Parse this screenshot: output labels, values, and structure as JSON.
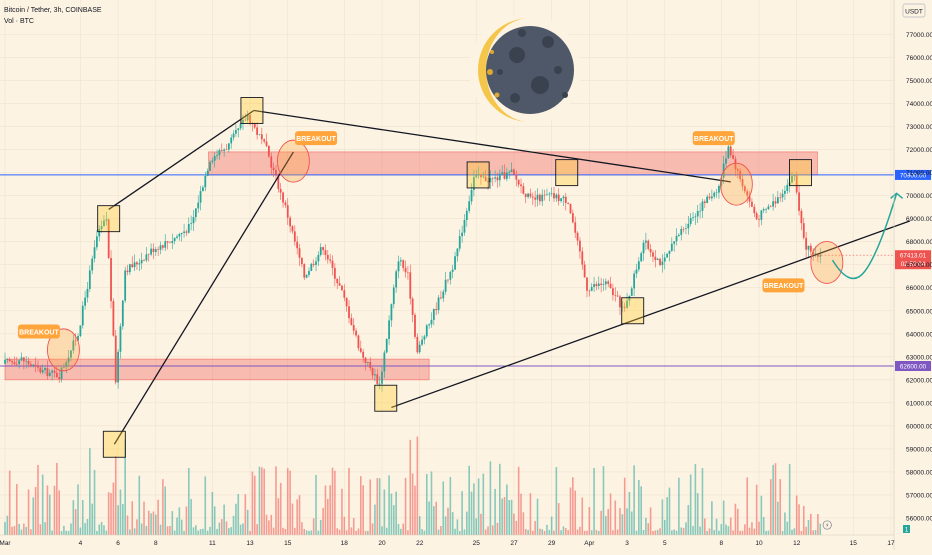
{
  "header": {
    "title": "Bitcoin / Tether, 3h, COINBASE",
    "volume_label": "Vol · BTC",
    "currency_badge": "USDT"
  },
  "chart_data": {
    "type": "candlestick",
    "symbol": "Bitcoin / Tether",
    "interval": "3h",
    "exchange": "COINBASE",
    "ylim": [
      55500,
      77900
    ],
    "y_ticks": [
      56000,
      57000,
      58000,
      59000,
      60000,
      61000,
      62000,
      63000,
      64000,
      65000,
      66000,
      67000,
      68000,
      69000,
      70000,
      71000,
      72000,
      73000,
      74000,
      75000,
      76000,
      77000
    ],
    "x_ticks": [
      {
        "label": "Mar",
        "day": 0
      },
      {
        "label": "4",
        "day": 4
      },
      {
        "label": "6",
        "day": 6
      },
      {
        "label": "8",
        "day": 8
      },
      {
        "label": "11",
        "day": 11
      },
      {
        "label": "13",
        "day": 13
      },
      {
        "label": "15",
        "day": 15
      },
      {
        "label": "18",
        "day": 18
      },
      {
        "label": "20",
        "day": 20
      },
      {
        "label": "22",
        "day": 22
      },
      {
        "label": "25",
        "day": 25
      },
      {
        "label": "27",
        "day": 27
      },
      {
        "label": "29",
        "day": 29
      },
      {
        "label": "Apr",
        "day": 31
      },
      {
        "label": "3",
        "day": 33
      },
      {
        "label": "5",
        "day": 35
      },
      {
        "label": "8",
        "day": 38
      },
      {
        "label": "10",
        "day": 40
      },
      {
        "label": "12",
        "day": 42
      },
      {
        "label": "15",
        "day": 45
      },
      {
        "label": "17",
        "day": 47
      }
    ],
    "price_path": [
      [
        0,
        62700
      ],
      [
        1,
        62900
      ],
      [
        2,
        62400
      ],
      [
        3,
        62200
      ],
      [
        4,
        64000
      ],
      [
        5,
        68200
      ],
      [
        5.5,
        69000
      ],
      [
        6,
        62000
      ],
      [
        6.5,
        66800
      ],
      [
        7,
        67000
      ],
      [
        8,
        67700
      ],
      [
        9,
        68100
      ],
      [
        10,
        68700
      ],
      [
        11,
        71600
      ],
      [
        12,
        72200
      ],
      [
        13,
        73500
      ],
      [
        14,
        72000
      ],
      [
        15,
        69500
      ],
      [
        16,
        66500
      ],
      [
        17,
        67800
      ],
      [
        18,
        65800
      ],
      [
        19,
        63200
      ],
      [
        20,
        61800
      ],
      [
        21,
        67300
      ],
      [
        21.5,
        66500
      ],
      [
        22,
        63200
      ],
      [
        23,
        65200
      ],
      [
        24,
        67200
      ],
      [
        25,
        70800
      ],
      [
        26,
        70700
      ],
      [
        27,
        71000
      ],
      [
        28,
        69800
      ],
      [
        29,
        70000
      ],
      [
        30,
        69800
      ],
      [
        31,
        66000
      ],
      [
        32,
        66200
      ],
      [
        33,
        65000
      ],
      [
        34,
        68000
      ],
      [
        35,
        67000
      ],
      [
        36,
        68500
      ],
      [
        37,
        69500
      ],
      [
        38,
        70400
      ],
      [
        38.5,
        72200
      ],
      [
        39,
        71000
      ],
      [
        40,
        69000
      ],
      [
        41,
        69800
      ],
      [
        42,
        70900
      ],
      [
        42.5,
        68000
      ],
      [
        43,
        67300
      ],
      [
        43.3,
        67413
      ]
    ],
    "horizontal_levels": [
      {
        "price": 70900,
        "label": "70900.00",
        "color": "#2962ff"
      },
      {
        "price": 62600,
        "label": "62600.00",
        "color": "#7e57c2"
      }
    ],
    "current_price": {
      "label": "67413.01",
      "countdown": "02:52:04"
    },
    "zones": [
      {
        "from_day": 0,
        "to_day": 22.5,
        "low": 62000,
        "high": 62900
      },
      {
        "from_day": 10.8,
        "to_day": 43.1,
        "low": 70900,
        "high": 71900
      }
    ],
    "trendlines": [
      {
        "from": [
          5.5,
          69400
        ],
        "to": [
          13.2,
          73700
        ]
      },
      {
        "from": [
          5.8,
          59200
        ],
        "to": [
          15.3,
          71900
        ]
      },
      {
        "from": [
          13.2,
          73700
        ],
        "to": [
          38.5,
          70600
        ]
      },
      {
        "from": [
          20.5,
          60800
        ],
        "to": [
          48,
          68900
        ]
      }
    ],
    "pivot_boxes": [
      [
        5.5,
        69000
      ],
      [
        5.8,
        59200
      ],
      [
        13.1,
        73700
      ],
      [
        20.2,
        61200
      ],
      [
        25.1,
        70900
      ],
      [
        29.8,
        71000
      ],
      [
        33.3,
        65000
      ],
      [
        42.2,
        71000
      ]
    ],
    "breakout_circles": [
      [
        3.1,
        63300
      ],
      [
        15.3,
        71500
      ],
      [
        38.8,
        70500
      ],
      [
        43.6,
        67100
      ]
    ],
    "labels": [
      {
        "text": "BREAKOUT",
        "day": 1.8,
        "price": 64100
      },
      {
        "text": "BREAKOUT",
        "day": 16.5,
        "price": 72500
      },
      {
        "text": "BREAKOUT",
        "day": 37.6,
        "price": 72500
      },
      {
        "text": "BREAKOUT",
        "day": 41.3,
        "price": 66100
      }
    ],
    "projection": [
      [
        43.9,
        67200
      ],
      [
        45.6,
        66700
      ],
      [
        47.3,
        70100
      ]
    ],
    "volume_axis_label": "1"
  },
  "colors": {
    "up": "#26a69a",
    "down": "#ef5350",
    "background": "#fdf3e3",
    "zone": "#ef5350",
    "label_bg": "#ffa53b",
    "projection": "#26a69a"
  }
}
